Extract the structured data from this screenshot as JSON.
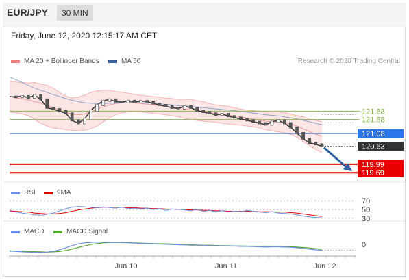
{
  "header": {
    "pair": "EUR/JPY",
    "timeframe": "30 MIN"
  },
  "timestamp": "Friday, June 12, 2020 12:15:17 AM CET",
  "credit": "Research © 2020 Trading Central",
  "colors": {
    "bands": "#f08080",
    "ma50": "#3a5f9e",
    "resistance": "#8ab84a",
    "pivot": "#3c78d8",
    "support": "#e00000",
    "price": "#333333",
    "rsi": "#6f8fe0",
    "rsi_ma": "#e00000",
    "macd": "#6f8fe0",
    "macd_signal": "#55a630"
  },
  "chart_data": [
    {
      "type": "line",
      "panel": "price",
      "legend": [
        "MA 20 + Bollinger Bands",
        "MA 50"
      ],
      "legend_position": "top-left",
      "x_ticks": [
        "Jun 10",
        "Jun 11",
        "Jun 12"
      ],
      "ylim": [
        119.5,
        123.4
      ],
      "levels": [
        {
          "label": "121.88",
          "value": 121.88,
          "kind": "resistance"
        },
        {
          "label": "121.58",
          "value": 121.58,
          "kind": "resistance"
        },
        {
          "label": "121.08",
          "value": 121.08,
          "kind": "pivot"
        },
        {
          "label": "119.99",
          "value": 119.99,
          "kind": "support"
        },
        {
          "label": "119.69",
          "value": 119.69,
          "kind": "support"
        }
      ],
      "last_price": {
        "label": "120.63",
        "value": 120.63
      },
      "series": [
        {
          "name": "Price",
          "values": [
            122.4,
            122.38,
            122.42,
            122.36,
            122.45,
            122.3,
            122.0,
            121.95,
            121.88,
            121.8,
            121.55,
            121.45,
            121.6,
            121.9,
            122.1,
            122.25,
            122.3,
            122.22,
            122.2,
            122.25,
            122.2,
            122.24,
            122.22,
            122.15,
            122.1,
            122.05,
            122.0,
            121.98,
            122.05,
            122.0,
            121.9,
            121.85,
            121.8,
            121.75,
            121.78,
            121.7,
            121.65,
            121.6,
            121.55,
            121.5,
            121.45,
            121.4,
            121.5,
            121.55,
            121.45,
            121.3,
            121.1,
            120.9,
            120.75,
            120.7,
            120.63
          ]
        },
        {
          "name": "MA 20",
          "values": [
            122.4,
            122.36,
            122.32,
            122.28,
            122.22,
            122.16,
            122.08,
            122.0,
            121.92,
            121.84,
            121.78,
            121.75,
            121.78,
            121.85,
            121.95,
            122.03,
            122.1,
            122.15,
            122.18,
            122.18,
            122.17,
            122.15,
            122.13,
            122.1,
            122.07,
            122.05,
            122.02,
            121.98,
            121.95,
            121.93,
            121.9,
            121.87,
            121.83,
            121.8,
            121.77,
            121.74,
            121.71,
            121.67,
            121.63,
            121.6,
            121.56,
            121.52,
            121.5,
            121.49,
            121.47,
            121.42,
            121.35,
            121.25,
            121.15,
            121.06,
            120.98
          ]
        },
        {
          "name": "Upper Band",
          "values": [
            122.95,
            122.92,
            122.9,
            122.88,
            122.9,
            122.85,
            122.8,
            122.7,
            122.55,
            122.42,
            122.35,
            122.38,
            122.45,
            122.55,
            122.6,
            122.62,
            122.62,
            122.58,
            122.55,
            122.52,
            122.48,
            122.45,
            122.42,
            122.4,
            122.38,
            122.35,
            122.33,
            122.3,
            122.3,
            122.3,
            122.25,
            122.22,
            122.15,
            122.1,
            122.08,
            122.05,
            122.0,
            121.95,
            121.92,
            121.9,
            121.88,
            121.85,
            121.85,
            121.85,
            121.82,
            121.78,
            121.72,
            121.68,
            121.6,
            121.55,
            121.5
          ]
        },
        {
          "name": "Lower Band",
          "values": [
            121.85,
            121.82,
            121.78,
            121.72,
            121.58,
            121.45,
            121.35,
            121.28,
            121.25,
            121.22,
            121.2,
            121.18,
            121.2,
            121.25,
            121.35,
            121.5,
            121.65,
            121.75,
            121.82,
            121.85,
            121.86,
            121.85,
            121.83,
            121.8,
            121.78,
            121.75,
            121.72,
            121.68,
            121.62,
            121.58,
            121.55,
            121.52,
            121.5,
            121.48,
            121.45,
            121.42,
            121.4,
            121.38,
            121.35,
            121.32,
            121.28,
            121.22,
            121.18,
            121.14,
            121.1,
            121.05,
            120.95,
            120.8,
            120.65,
            120.52,
            120.4
          ]
        },
        {
          "name": "MA 50",
          "values": [
            123.1,
            123.0,
            122.9,
            122.8,
            122.7,
            122.62,
            122.55,
            122.47,
            122.4,
            122.33,
            122.27,
            122.22,
            122.18,
            122.16,
            122.15,
            122.15,
            122.16,
            122.17,
            122.18,
            122.19,
            122.19,
            122.18,
            122.17,
            122.16,
            122.14,
            122.12,
            122.1,
            122.08,
            122.06,
            122.05,
            122.02,
            122.0,
            121.98,
            121.96,
            121.94,
            121.92,
            121.9,
            121.87,
            121.84,
            121.81,
            121.78,
            121.75,
            121.73,
            121.71,
            121.68,
            121.64,
            121.6,
            121.55,
            121.5,
            121.45,
            121.4
          ]
        }
      ],
      "forecast_target": 119.69
    },
    {
      "type": "line",
      "panel": "rsi",
      "legend": [
        "RSI",
        "9MA"
      ],
      "legend_position": "top-left",
      "ylim": [
        25,
        75
      ],
      "y_ticks": [
        {
          "label": "70",
          "value": 70
        },
        {
          "label": "50",
          "value": 50
        },
        {
          "label": "30",
          "value": 30
        }
      ],
      "series": [
        {
          "name": "RSI",
          "values": [
            46,
            44,
            42,
            40,
            38,
            37,
            39,
            42,
            47,
            52,
            55,
            57,
            56,
            55,
            54,
            56,
            54,
            53,
            55,
            52,
            53,
            51,
            53,
            50,
            52,
            48,
            51,
            50,
            49,
            47,
            50,
            46,
            48,
            45,
            47,
            44,
            46,
            45,
            48,
            46,
            44,
            43,
            45,
            42,
            41,
            40,
            38,
            35,
            33,
            32,
            31
          ]
        },
        {
          "name": "9MA",
          "values": [
            47,
            46,
            45,
            44,
            42,
            41,
            40,
            40,
            41,
            43,
            46,
            49,
            51,
            53,
            54,
            55,
            55,
            55,
            55,
            54,
            54,
            53,
            53,
            52,
            52,
            51,
            51,
            50,
            50,
            49,
            49,
            48,
            48,
            47,
            47,
            46,
            46,
            46,
            46,
            46,
            45,
            45,
            45,
            44,
            44,
            43,
            42,
            40,
            38,
            36,
            34
          ]
        }
      ]
    },
    {
      "type": "line",
      "panel": "macd",
      "legend": [
        "MACD",
        "MACD Signal"
      ],
      "legend_position": "top-left",
      "ylim": [
        -0.45,
        0.35
      ],
      "y_ticks": [
        {
          "label": "0",
          "value": 0
        }
      ],
      "series": [
        {
          "name": "MACD",
          "values": [
            -0.3,
            -0.31,
            -0.33,
            -0.34,
            -0.35,
            -0.35,
            -0.34,
            -0.3,
            -0.24,
            -0.15,
            -0.06,
            0.02,
            0.06,
            0.08,
            0.09,
            0.09,
            0.08,
            0.07,
            0.07,
            0.06,
            0.05,
            0.04,
            0.03,
            0.02,
            0.01,
            0.0,
            -0.01,
            -0.02,
            -0.03,
            -0.04,
            -0.04,
            -0.05,
            -0.06,
            -0.07,
            -0.07,
            -0.08,
            -0.08,
            -0.09,
            -0.09,
            -0.1,
            -0.11,
            -0.12,
            -0.11,
            -0.11,
            -0.12,
            -0.13,
            -0.15,
            -0.18,
            -0.21,
            -0.24,
            -0.26
          ]
        },
        {
          "name": "MACD Signal",
          "values": [
            -0.28,
            -0.29,
            -0.3,
            -0.31,
            -0.32,
            -0.33,
            -0.34,
            -0.33,
            -0.31,
            -0.27,
            -0.21,
            -0.14,
            -0.07,
            -0.01,
            0.03,
            0.06,
            0.07,
            0.07,
            0.07,
            0.07,
            0.06,
            0.05,
            0.04,
            0.03,
            0.02,
            0.02,
            0.01,
            0.0,
            -0.01,
            -0.02,
            -0.03,
            -0.04,
            -0.04,
            -0.05,
            -0.06,
            -0.06,
            -0.07,
            -0.07,
            -0.08,
            -0.08,
            -0.09,
            -0.1,
            -0.1,
            -0.1,
            -0.11,
            -0.11,
            -0.12,
            -0.14,
            -0.16,
            -0.19,
            -0.22
          ]
        }
      ]
    }
  ]
}
